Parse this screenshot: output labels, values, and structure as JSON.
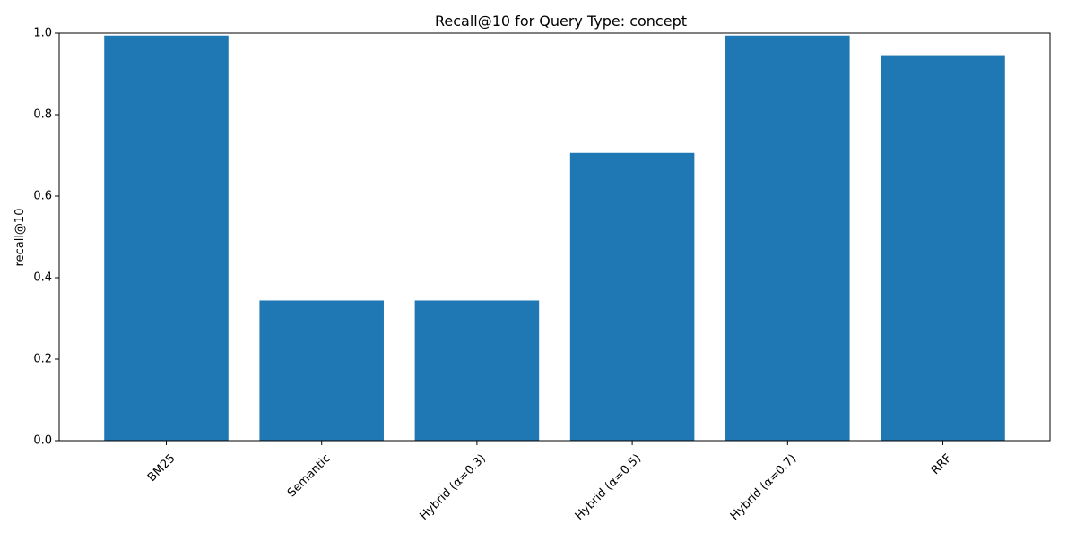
{
  "chart_data": {
    "type": "bar",
    "title": "Recall@10 for Query Type: concept",
    "xlabel": "",
    "ylabel": "recall@10",
    "categories": [
      "BM25",
      "Semantic",
      "Hybrid (α=0.3)",
      "Hybrid (α=0.5)",
      "Hybrid (α=0.7)",
      "RRF"
    ],
    "values": [
      0.994,
      0.344,
      0.344,
      0.706,
      0.994,
      0.946
    ],
    "ylim": [
      0,
      1.0
    ],
    "yticks": [
      0.0,
      0.2,
      0.4,
      0.6,
      0.8,
      1.0
    ],
    "ytick_labels": [
      "0.0",
      "0.2",
      "0.4",
      "0.6",
      "0.8",
      "1.0"
    ],
    "grid": false,
    "bar_color": "#1f77b4"
  }
}
